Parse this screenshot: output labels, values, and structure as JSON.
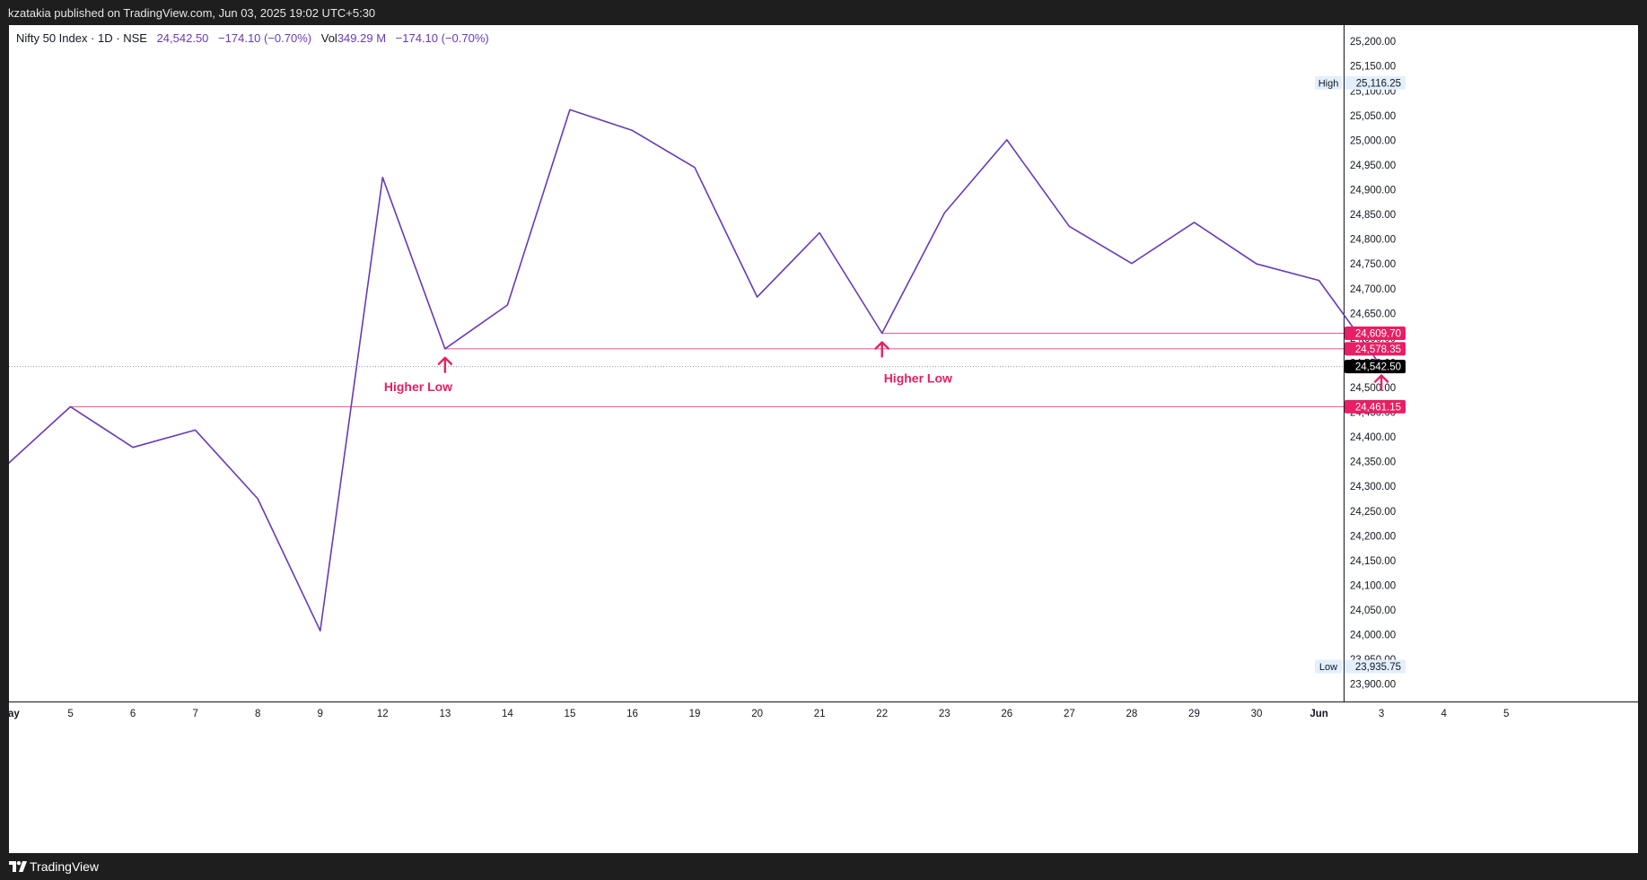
{
  "header": {
    "publish_text": "kzatakia published on TradingView.com, Jun 03, 2025 19:02 UTC+5:30"
  },
  "legend": {
    "symbol": "Nifty 50 Index · 1D · NSE",
    "price": "24,542.50",
    "change": "−174.10 (−0.70%)",
    "vol_label": "Vol",
    "vol_value": "349.29 M",
    "vol_change": "−174.10 (−0.70%)"
  },
  "footer": {
    "brand": "TradingView"
  },
  "chart_data": {
    "type": "line",
    "title": "Nifty 50 Index · 1D · NSE",
    "x_ticks": [
      "ay",
      "5",
      "6",
      "7",
      "8",
      "9",
      "12",
      "13",
      "14",
      "15",
      "16",
      "19",
      "20",
      "21",
      "22",
      "23",
      "26",
      "27",
      "28",
      "29",
      "30",
      "Jun",
      "3",
      "4",
      "5",
      ""
    ],
    "series": [
      {
        "color": "#673ab7",
        "values": [
          24346,
          24461.15,
          24379,
          24414,
          24275,
          24008,
          24925,
          24578.35,
          24667,
          25062,
          25020,
          24945,
          24683,
          24813,
          24609.7,
          24853,
          25001,
          24826,
          24751,
          24834,
          24750,
          24716.6,
          24542.5
        ]
      }
    ],
    "y_ticks": [
      23900,
      23950,
      24000,
      24050,
      24100,
      24150,
      24200,
      24250,
      24300,
      24350,
      24400,
      24450,
      24500,
      24550,
      24600,
      24650,
      24700,
      24750,
      24800,
      24850,
      24900,
      24950,
      25000,
      25050,
      25100,
      25150,
      25200
    ],
    "y_tick_labels": [
      "23,900.00",
      "23,950.00",
      "24,000.00",
      "24,050.00",
      "24,100.00",
      "24,150.00",
      "24,200.00",
      "24,250.00",
      "24,300.00",
      "24,350.00",
      "24,400.00",
      "24,450.00",
      "24,500.00",
      "24,550.00",
      "24,600.00",
      "24,650.00",
      "24,700.00",
      "24,750.00",
      "24,800.00",
      "24,850.00",
      "24,900.00",
      "24,950.00",
      "25,000.00",
      "25,050.00",
      "25,100.00",
      "25,150.00",
      "25,200.00"
    ],
    "ylim": [
      23865,
      25233
    ],
    "grid": false,
    "horizontal_lines": [
      {
        "value": 24609.7,
        "label": "24,609.70",
        "start_index": 14,
        "color": "#f06292",
        "label_bg": "#e91e63"
      },
      {
        "value": 24578.35,
        "label": "24,578.35",
        "start_index": 7,
        "color": "#f06292",
        "label_bg": "#e91e63"
      },
      {
        "value": 24461.15,
        "label": "24,461.15",
        "start_index": 1,
        "color": "#f06292",
        "label_bg": "#e91e63"
      }
    ],
    "last_price": {
      "value": 24542.5,
      "label": "24,542.50"
    },
    "high": {
      "label": "High",
      "value": 25116.25,
      "value_label": "25,116.25"
    },
    "low": {
      "label": "Low",
      "value": 23935.75,
      "value_label": "23,935.75"
    },
    "annotations": [
      {
        "text": "Higher Low",
        "index": 7
      },
      {
        "text": "Higher Low",
        "index": 14
      },
      {
        "text": "",
        "index": 22
      }
    ],
    "annotation_color": "#e91e63"
  }
}
